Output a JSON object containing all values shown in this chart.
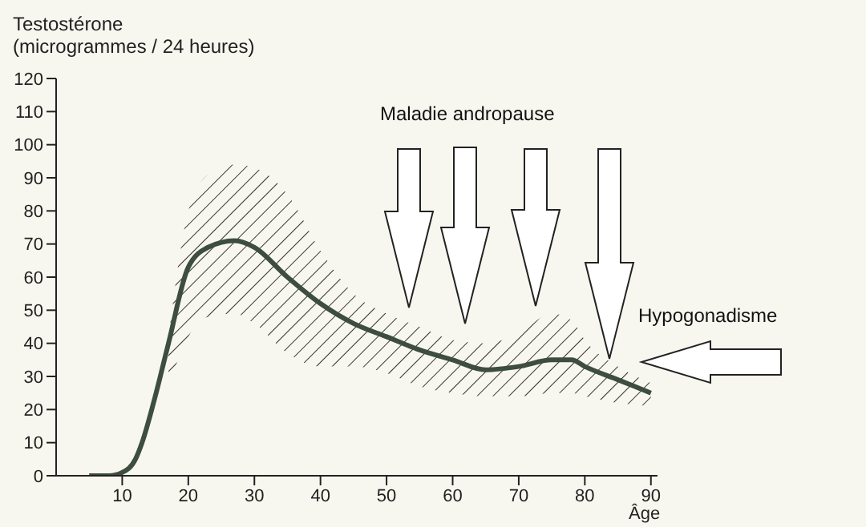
{
  "chart_data": {
    "type": "line",
    "ylabel": "Testostérone\n(microgrammes / 24 heures)",
    "xlabel": "Âge",
    "x": [
      5,
      8,
      10,
      12,
      13,
      15,
      17,
      20,
      23,
      27,
      30,
      35,
      40,
      45,
      50,
      55,
      60,
      65,
      70,
      75,
      78,
      80,
      85,
      90
    ],
    "series": [
      {
        "color": "#3d4d3f",
        "values": [
          0,
          0,
          1,
          5,
          10,
          24,
          40,
          63,
          69,
          71,
          69,
          60,
          52,
          46,
          42,
          38,
          35,
          32,
          33,
          35,
          35,
          33,
          29,
          25
        ],
        "lower": [
          null,
          null,
          null,
          null,
          null,
          null,
          27,
          42,
          48,
          49,
          46,
          37,
          33,
          33,
          31,
          27,
          25,
          24,
          24,
          25,
          25,
          24,
          22,
          21
        ],
        "upper": [
          null,
          null,
          null,
          null,
          null,
          null,
          42,
          80,
          91,
          94,
          93,
          85,
          68,
          55,
          49,
          45,
          41,
          40,
          43,
          49,
          47,
          41,
          33,
          28
        ]
      }
    ],
    "xlim": [
      0,
      91
    ],
    "xticks": [
      10,
      20,
      30,
      40,
      50,
      60,
      70,
      80,
      90
    ],
    "ylim": [
      0,
      120
    ],
    "yticks": [
      0,
      10,
      20,
      30,
      40,
      50,
      60,
      70,
      80,
      90,
      100,
      110,
      120
    ],
    "marker": "none",
    "line_style": "solid",
    "annotations": [
      "Maladie andropause",
      "Hypogonadisme"
    ]
  }
}
